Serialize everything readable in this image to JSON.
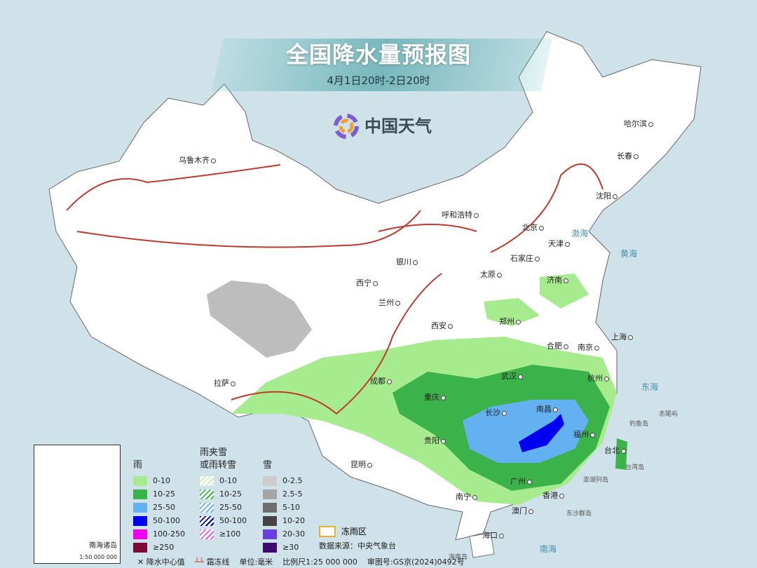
{
  "title": "全国降水量预报图",
  "subtitle": "4月1日20时-2日20时",
  "logo": {
    "text": "中国天气"
  },
  "cities": [
    "乌鲁木齐",
    "哈尔滨",
    "长春",
    "沈阳",
    "呼和浩特",
    "北京",
    "天津",
    "石家庄",
    "太原",
    "济南",
    "银川",
    "西宁",
    "兰州",
    "郑州",
    "西安",
    "合肥",
    "南京",
    "上海",
    "拉萨",
    "成都",
    "武汉",
    "杭州",
    "重庆",
    "长沙",
    "南昌",
    "福州",
    "贵阳",
    "昆明",
    "台北",
    "广州",
    "南宁",
    "澳门",
    "香港",
    "海口"
  ],
  "seas": [
    "渤海",
    "黄海",
    "东海",
    "南海"
  ],
  "islands": [
    "钓鱼岛",
    "赤尾屿",
    "台湾岛",
    "澎湖列岛",
    "东沙群岛",
    "海南岛"
  ],
  "inset": {
    "caption": "南海诸岛",
    "scale": "1:50 000 000"
  },
  "legend": {
    "rain": {
      "title": "雨",
      "items": [
        {
          "label": "0-10",
          "color": "#a6ec8e"
        },
        {
          "label": "10-25",
          "color": "#3cb34a"
        },
        {
          "label": "25-50",
          "color": "#63b1f0"
        },
        {
          "label": "50-100",
          "color": "#0000f0"
        },
        {
          "label": "100-250",
          "color": "#f000f0"
        },
        {
          "label": "≥250",
          "color": "#7a0a3a"
        }
      ]
    },
    "sleet": {
      "title": "雨夹雪",
      "title2": "或雨转雪",
      "items": [
        {
          "label": "0-10",
          "color": "#cfeec0"
        },
        {
          "label": "10-25",
          "color": "#3cb34a"
        },
        {
          "label": "25-50",
          "color": "#63b1f0"
        },
        {
          "label": "50-100",
          "color": "#0000a0"
        },
        {
          "label": "≥100",
          "color": "#e060e0"
        }
      ]
    },
    "snow": {
      "title": "雪",
      "items": [
        {
          "label": "0-2.5",
          "color": "#cccccc"
        },
        {
          "label": "2.5-5",
          "color": "#a6a6a6"
        },
        {
          "label": "5-10",
          "color": "#6e6e6e"
        },
        {
          "label": "10-20",
          "color": "#444444"
        },
        {
          "label": "20-30",
          "color": "#6a3fe0"
        },
        {
          "label": "≥30",
          "color": "#3d0a6e"
        }
      ]
    },
    "freezing_rain": {
      "label": "冻雨区",
      "color": "#e8b030"
    },
    "source": "数据来源：中央气象台",
    "footer": {
      "center_mark": "降水中心值",
      "frost_line": "霜冻线",
      "unit": "单位:毫米",
      "scale": "比例尺1:25 000 000",
      "approval": "审图号:GS京(2024)0492号"
    }
  },
  "colors": {
    "sea": "#cfe2ea",
    "land": "#ffffff",
    "frost_line": "#c0392b"
  }
}
